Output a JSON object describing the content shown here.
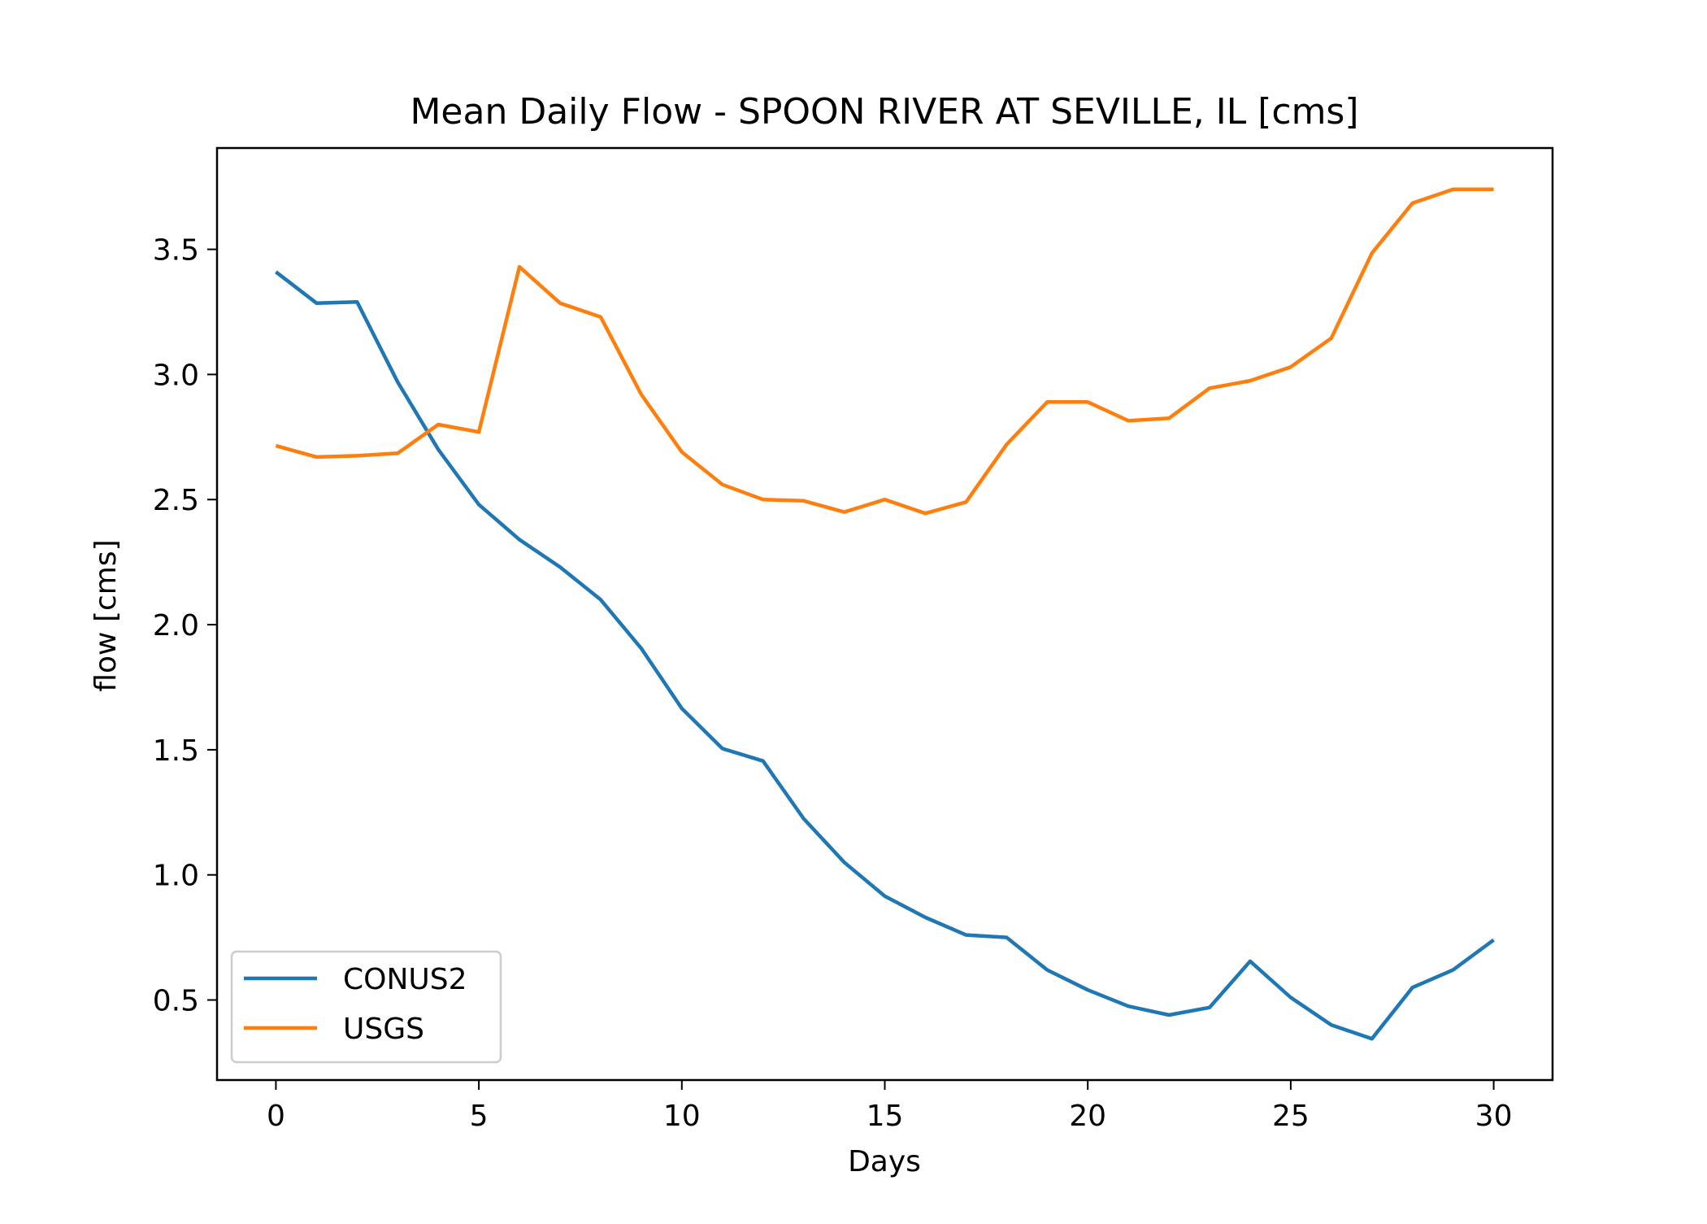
{
  "chart_data": {
    "type": "line",
    "title": "Mean Daily Flow - SPOON RIVER AT SEVILLE, IL [cms]",
    "xlabel": "Days",
    "ylabel": "flow [cms]",
    "xlim": [
      -1.45,
      31.45
    ],
    "ylim": [
      0.18,
      3.905
    ],
    "xticks": [
      0,
      5,
      10,
      15,
      20,
      25,
      30
    ],
    "yticks": [
      0.5,
      1.0,
      1.5,
      2.0,
      2.5,
      3.0,
      3.5
    ],
    "x": [
      0,
      1,
      2,
      3,
      4,
      5,
      6,
      7,
      8,
      9,
      10,
      11,
      12,
      13,
      14,
      15,
      16,
      17,
      18,
      19,
      20,
      21,
      22,
      23,
      24,
      25,
      26,
      27,
      28,
      29,
      30
    ],
    "grid": false,
    "legend_position": "lower-left",
    "series": [
      {
        "name": "CONUS2",
        "color": "#1f77b4",
        "values": [
          3.41,
          3.285,
          3.29,
          2.97,
          2.7,
          2.48,
          2.34,
          2.23,
          2.1,
          1.905,
          1.665,
          1.505,
          1.455,
          1.225,
          1.05,
          0.915,
          0.83,
          0.76,
          0.75,
          0.62,
          0.54,
          0.475,
          0.44,
          0.47,
          0.655,
          0.51,
          0.4,
          0.345,
          0.55,
          0.62,
          0.74
        ]
      },
      {
        "name": "USGS",
        "color": "#ff7f0e",
        "values": [
          2.715,
          2.67,
          2.675,
          2.685,
          2.8,
          2.77,
          3.43,
          3.285,
          3.23,
          2.92,
          2.69,
          2.56,
          2.5,
          2.495,
          2.45,
          2.5,
          2.445,
          2.49,
          2.72,
          2.89,
          2.89,
          2.815,
          2.825,
          2.945,
          2.975,
          3.03,
          3.145,
          3.485,
          3.685,
          3.74,
          3.74
        ]
      }
    ]
  }
}
